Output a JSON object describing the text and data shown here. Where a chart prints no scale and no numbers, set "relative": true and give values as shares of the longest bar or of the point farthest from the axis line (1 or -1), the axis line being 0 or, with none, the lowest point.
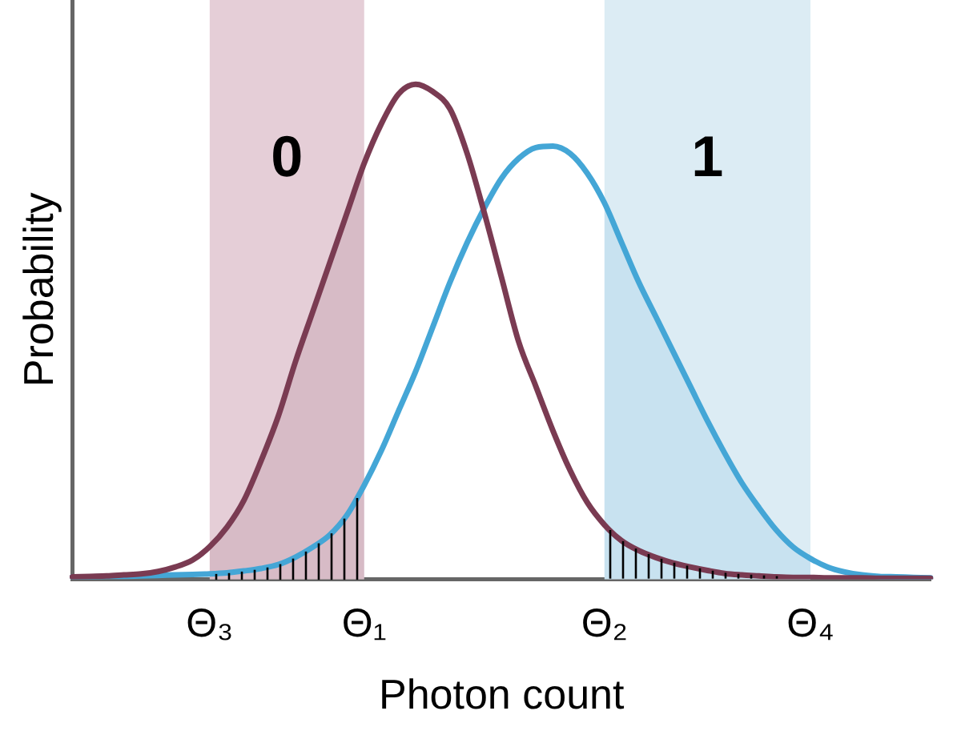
{
  "chart_data": {
    "type": "line",
    "relative": true,
    "xlabel": "Photon count",
    "ylabel": "Probability",
    "categories": [
      null,
      null,
      null,
      null,
      null,
      null,
      null,
      null,
      "Θ₃",
      null,
      null,
      null,
      null,
      null,
      null,
      null,
      null,
      "Θ₁",
      null,
      null,
      null,
      null,
      null,
      null,
      null,
      null,
      null,
      null,
      null,
      null,
      null,
      "Θ₂",
      null,
      null,
      null,
      null,
      null,
      null,
      null,
      null,
      null,
      null,
      null,
      "Θ₄",
      null,
      null,
      null,
      null,
      null,
      null,
      null
    ],
    "series": [
      {
        "color": "#7a3b52",
        "values": [
          0.005,
          0.006,
          0.007,
          0.009,
          0.011,
          0.016,
          0.025,
          0.039,
          0.066,
          0.105,
          0.16,
          0.24,
          0.33,
          0.44,
          0.54,
          0.64,
          0.74,
          0.84,
          0.92,
          0.98,
          1,
          0.985,
          0.95,
          0.86,
          0.74,
          0.61,
          0.48,
          0.39,
          0.3,
          0.22,
          0.155,
          0.11,
          0.078,
          0.058,
          0.044,
          0.033,
          0.025,
          0.018,
          0.012,
          0.009,
          0.007,
          0.005,
          0.004,
          0.004,
          0.003,
          0.003,
          0.003,
          0.002,
          0.002,
          0.002,
          0.002
        ]
      },
      {
        "color": "#44a6d6",
        "values": [
          0.005,
          0.005,
          0.006,
          0.006,
          0.007,
          0.008,
          0.009,
          0.01,
          0.011,
          0.013,
          0.017,
          0.022,
          0.03,
          0.045,
          0.065,
          0.09,
          0.13,
          0.19,
          0.26,
          0.34,
          0.42,
          0.51,
          0.6,
          0.68,
          0.75,
          0.81,
          0.85,
          0.872,
          0.875,
          0.86,
          0.82,
          0.76,
          0.68,
          0.6,
          0.53,
          0.46,
          0.39,
          0.32,
          0.255,
          0.195,
          0.145,
          0.1,
          0.065,
          0.042,
          0.025,
          0.015,
          0.009,
          0.006,
          0.005,
          0.004,
          0.003
        ]
      }
    ],
    "bands": [
      {
        "axis": "x",
        "from": "Θ₃",
        "to": "Θ₁",
        "label": "0",
        "color": "#e5ced7"
      },
      {
        "axis": "x",
        "from": "Θ₂",
        "to": "Θ₄",
        "label": "1",
        "color": "#dcecf4"
      }
    ],
    "marker": "none",
    "line_style": "solid",
    "grid": false,
    "legend": false
  }
}
